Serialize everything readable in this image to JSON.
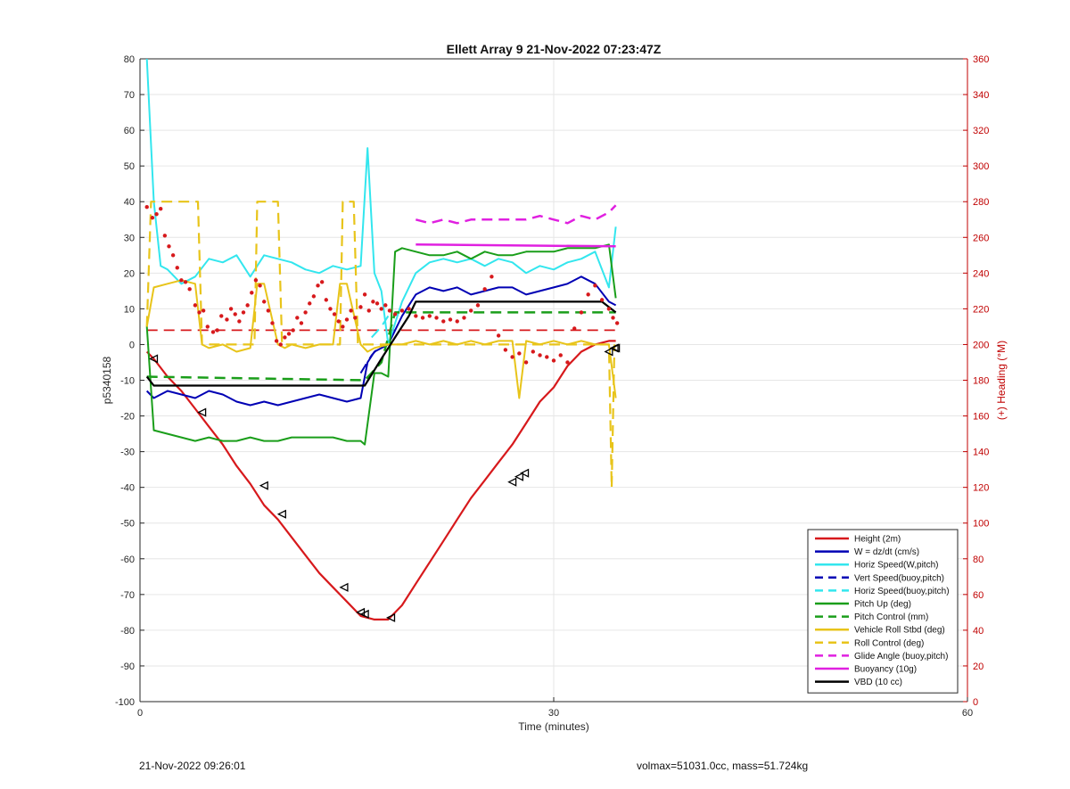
{
  "title": "Ellett Array 9 21-Nov-2022 07:23:47Z",
  "footer": {
    "left": "21-Nov-2022 09:26:01",
    "right": "volmax=51031.0cc, mass=51.724kg"
  },
  "chart_data": {
    "type": "line",
    "title": "Ellett Array 9 21-Nov-2022 07:23:47Z",
    "xlabel": "Time (minutes)",
    "ylabel": "p5340158",
    "y2label": "(+) Heading (°M)",
    "xlim": [
      0,
      60
    ],
    "ylim": [
      -100,
      80
    ],
    "y2lim": [
      0,
      360
    ],
    "xticks": [
      0,
      30,
      60
    ],
    "yticks": [
      -100,
      -90,
      -80,
      -70,
      -60,
      -50,
      -40,
      -30,
      -20,
      -10,
      0,
      10,
      20,
      30,
      40,
      50,
      60,
      70,
      80
    ],
    "y2ticks": [
      0,
      20,
      40,
      60,
      80,
      100,
      120,
      140,
      160,
      180,
      200,
      220,
      240,
      260,
      280,
      300,
      320,
      340,
      360
    ],
    "grid_x": [
      30
    ],
    "legend_position": "bottom-right",
    "colors": {
      "red": "#d7191c",
      "blue": "#0000b4",
      "cyan": "#33e6ee",
      "green": "#1a9e1a",
      "yellow": "#e8c41a",
      "magenta": "#e020e0",
      "black": "#000000",
      "right_axis": "#c00000"
    },
    "series": [
      {
        "name": "Height (2m)",
        "color": "#d7191c",
        "dash": false,
        "width": 2.2,
        "x": [
          0.5,
          1,
          2,
          3,
          4,
          5,
          6,
          7,
          8,
          9,
          10,
          11,
          12,
          13,
          14,
          15,
          16,
          17,
          18,
          19,
          20,
          21,
          22,
          23,
          24,
          25,
          26,
          27,
          28,
          29,
          30,
          31,
          32,
          33,
          34,
          34.5
        ],
        "y": [
          -2,
          -4,
          -9,
          -13,
          -18,
          -23,
          -28,
          -34,
          -39,
          -45,
          -49,
          -54,
          -59,
          -64,
          -68,
          -72,
          -76,
          -77,
          -77,
          -73,
          -67,
          -61,
          -55,
          -49,
          -43,
          -38,
          -33,
          -28,
          -22,
          -16,
          -12,
          -6,
          -2,
          0,
          1,
          1
        ]
      },
      {
        "name": "W = dz/dt (cm/s)",
        "color": "#0000b4",
        "dash": false,
        "width": 2,
        "x": [
          0.5,
          1,
          2,
          3,
          4,
          5,
          6,
          7,
          8,
          9,
          10,
          11,
          12,
          13,
          14,
          15,
          16,
          16.5,
          17,
          18,
          19,
          20,
          21,
          22,
          23,
          24,
          25,
          26,
          27,
          28,
          29,
          30,
          31,
          32,
          33,
          34,
          34.5
        ],
        "y": [
          -13,
          -15,
          -13,
          -14,
          -15,
          -13,
          -14,
          -16,
          -17,
          -16,
          -17,
          -16,
          -15,
          -14,
          -15,
          -16,
          -15,
          -5,
          -2,
          0,
          8,
          14,
          16,
          15,
          16,
          14,
          15,
          16,
          16,
          14,
          15,
          16,
          17,
          19,
          17,
          12,
          11
        ]
      },
      {
        "name": "Horiz Speed(W,pitch)",
        "color": "#33e6ee",
        "dash": false,
        "width": 2,
        "x": [
          0.5,
          1,
          1.5,
          2,
          3,
          4,
          5,
          6,
          7,
          8,
          9,
          10,
          11,
          12,
          13,
          14,
          15,
          16,
          16.5,
          17,
          17.5,
          18,
          19,
          20,
          21,
          22,
          23,
          24,
          25,
          26,
          27,
          28,
          29,
          30,
          31,
          32,
          33,
          34,
          34.5
        ],
        "y": [
          80,
          40,
          22,
          21,
          17,
          19,
          24,
          23,
          25,
          19,
          25,
          24,
          23,
          21,
          20,
          22,
          21,
          22,
          55,
          20,
          15,
          0,
          12,
          20,
          23,
          24,
          23,
          24,
          22,
          24,
          23,
          20,
          22,
          21,
          23,
          24,
          26,
          16,
          33
        ]
      },
      {
        "name": "Vert Speed(buoy,pitch)",
        "color": "#0000b4",
        "dash": true,
        "width": 2,
        "x": [
          16,
          16.8,
          17.5
        ],
        "y": [
          -8,
          -3,
          0
        ]
      },
      {
        "name": "Horiz Speed(buoy,pitch)",
        "color": "#33e6ee",
        "dash": true,
        "width": 2,
        "x": [
          16.8,
          17.5,
          18
        ],
        "y": [
          2,
          5,
          8
        ]
      },
      {
        "name": "Pitch Up (deg)",
        "color": "#1a9e1a",
        "dash": false,
        "width": 2,
        "x": [
          0.5,
          1,
          2,
          3,
          4,
          5,
          6,
          7,
          8,
          9,
          10,
          11,
          12,
          13,
          14,
          15,
          16,
          16.3,
          17,
          17.5,
          18,
          18.5,
          19,
          20,
          21,
          22,
          23,
          24,
          25,
          26,
          27,
          28,
          29,
          30,
          31,
          32,
          33,
          34,
          34.5
        ],
        "y": [
          5,
          -24,
          -25,
          -26,
          -27,
          -26,
          -27,
          -27,
          -26,
          -27,
          -27,
          -26,
          -26,
          -26,
          -26,
          -27,
          -27,
          -28,
          -8,
          -8,
          -9,
          26,
          27,
          26,
          25,
          25,
          26,
          24,
          26,
          25,
          25,
          26,
          26,
          26,
          27,
          27,
          27,
          28,
          13
        ]
      },
      {
        "name": "Pitch Control (mm)",
        "color": "#1a9e1a",
        "dash": true,
        "width": 2.5,
        "x": [
          0.5,
          16.3,
          17.5,
          18.5,
          34.5
        ],
        "y": [
          -9,
          -10,
          -5,
          9,
          9
        ]
      },
      {
        "name": "Vehicle Roll Stbd (deg)",
        "color": "#e8c41a",
        "dash": false,
        "width": 2,
        "x": [
          0.5,
          1,
          2,
          3,
          4,
          4.5,
          5,
          6,
          7,
          8,
          8.5,
          9,
          10,
          10.5,
          11,
          12,
          13,
          14,
          14.5,
          15,
          16,
          16.5,
          17,
          18,
          19,
          20,
          21,
          22,
          23,
          24,
          25,
          26,
          27,
          27.5,
          28,
          29,
          30,
          31,
          32,
          33,
          34,
          34.5
        ],
        "y": [
          5,
          16,
          17,
          18,
          17,
          0,
          -1,
          0,
          -2,
          -1,
          17,
          17,
          0,
          -1,
          0,
          -1,
          0,
          0,
          17,
          17,
          0,
          -2,
          -1,
          0,
          0,
          1,
          0,
          1,
          0,
          1,
          0,
          1,
          1,
          -15,
          1,
          0,
          1,
          0,
          1,
          0,
          0,
          -15
        ]
      },
      {
        "name": "Roll Control (deg)",
        "color": "#e8c41a",
        "dash": true,
        "width": 2.2,
        "x": [
          0.5,
          0.8,
          1,
          4.2,
          4.5,
          8.3,
          8.5,
          10,
          10.3,
          14.5,
          14.7,
          15.5,
          15.8,
          16.5,
          17,
          34,
          34.2,
          34.4
        ],
        "y": [
          5,
          40,
          40,
          40,
          0,
          0,
          40,
          40,
          0,
          0,
          40,
          40,
          0,
          0,
          0,
          0,
          -40,
          0
        ]
      },
      {
        "name": "Glide Angle (buoy,pitch)",
        "color": "#e020e0",
        "dash": true,
        "width": 2.5,
        "x": [
          20,
          21,
          22,
          23,
          24,
          25,
          26,
          27,
          28,
          29,
          30,
          31,
          32,
          33,
          34,
          34.5
        ],
        "y": [
          35,
          34,
          35,
          34,
          35,
          35,
          35,
          35,
          35,
          36,
          35,
          34,
          36,
          35,
          37,
          39
        ]
      },
      {
        "name": "Buoyancy (10g)",
        "color": "#e020e0",
        "dash": false,
        "width": 2.5,
        "x": [
          20,
          34.5
        ],
        "y": [
          28,
          27.5
        ]
      },
      {
        "name": "VBD (10 cc)",
        "color": "#000000",
        "dash": false,
        "width": 2.2,
        "x": [
          0.5,
          1,
          16.3,
          17.5,
          18.5,
          19.5,
          20,
          33.5,
          34.5
        ],
        "y": [
          -9,
          -11.5,
          -11.5,
          -4,
          2,
          8,
          12,
          12,
          9
        ]
      }
    ],
    "extra_lines": [
      {
        "color": "#d7191c",
        "dash": true,
        "width": 1.8,
        "x": [
          0.5,
          34.5
        ],
        "y": [
          4,
          4
        ]
      }
    ],
    "heading_points": {
      "color": "#d7191c",
      "axis": "right",
      "x": [
        0.5,
        0.9,
        1.2,
        1.5,
        1.8,
        2.1,
        2.4,
        2.7,
        3.0,
        3.3,
        3.6,
        4.0,
        4.3,
        4.6,
        4.9,
        5.3,
        5.6,
        5.9,
        6.3,
        6.6,
        6.9,
        7.2,
        7.5,
        7.8,
        8.1,
        8.4,
        8.7,
        9.0,
        9.3,
        9.6,
        9.9,
        10.2,
        10.5,
        10.8,
        11.1,
        11.4,
        11.7,
        12.0,
        12.3,
        12.6,
        12.9,
        13.2,
        13.5,
        13.8,
        14.1,
        14.4,
        14.7,
        15.0,
        15.3,
        15.6,
        16.0,
        16.3,
        16.6,
        16.9,
        17.2,
        17.5,
        17.8,
        18.1,
        18.5,
        19.0,
        19.5,
        20.0,
        20.5,
        21.0,
        21.5,
        22.0,
        22.5,
        23.0,
        23.5,
        24.0,
        24.5,
        25.0,
        25.5,
        26.0,
        26.5,
        27.0,
        27.5,
        28.0,
        28.5,
        29.0,
        29.5,
        30.0,
        30.5,
        31.0,
        31.5,
        32.0,
        32.5,
        33.0,
        33.5,
        34.0,
        34.3,
        34.6
      ],
      "y": [
        277,
        271,
        273,
        276,
        261,
        255,
        250,
        243,
        236,
        235,
        231,
        222,
        218,
        219,
        210,
        207,
        208,
        216,
        214,
        220,
        217,
        213,
        218,
        222,
        229,
        236,
        233,
        224,
        219,
        212,
        202,
        200,
        204,
        206,
        208,
        215,
        212,
        218,
        223,
        227,
        233,
        235,
        225,
        220,
        217,
        213,
        210,
        214,
        219,
        215,
        221,
        228,
        219,
        224,
        223,
        220,
        222,
        219,
        217,
        219,
        220,
        216,
        215,
        216,
        215,
        213,
        214,
        213,
        215,
        219,
        222,
        231,
        238,
        205,
        197,
        193,
        195,
        190,
        196,
        194,
        193,
        191,
        194,
        190,
        209,
        218,
        228,
        233,
        225,
        220,
        215,
        212
      ]
    },
    "markers": {
      "color": "#000000",
      "x": [
        1,
        4.5,
        9,
        10.3,
        14.8,
        16,
        16.3,
        18.2,
        27,
        27.5,
        27.9,
        34,
        34.4,
        34.5
      ],
      "y": [
        -4,
        -19,
        -39.5,
        -47.5,
        -68,
        -75,
        -75.5,
        -76.5,
        -38.5,
        -37,
        -36,
        -2,
        -1,
        -1
      ]
    }
  }
}
